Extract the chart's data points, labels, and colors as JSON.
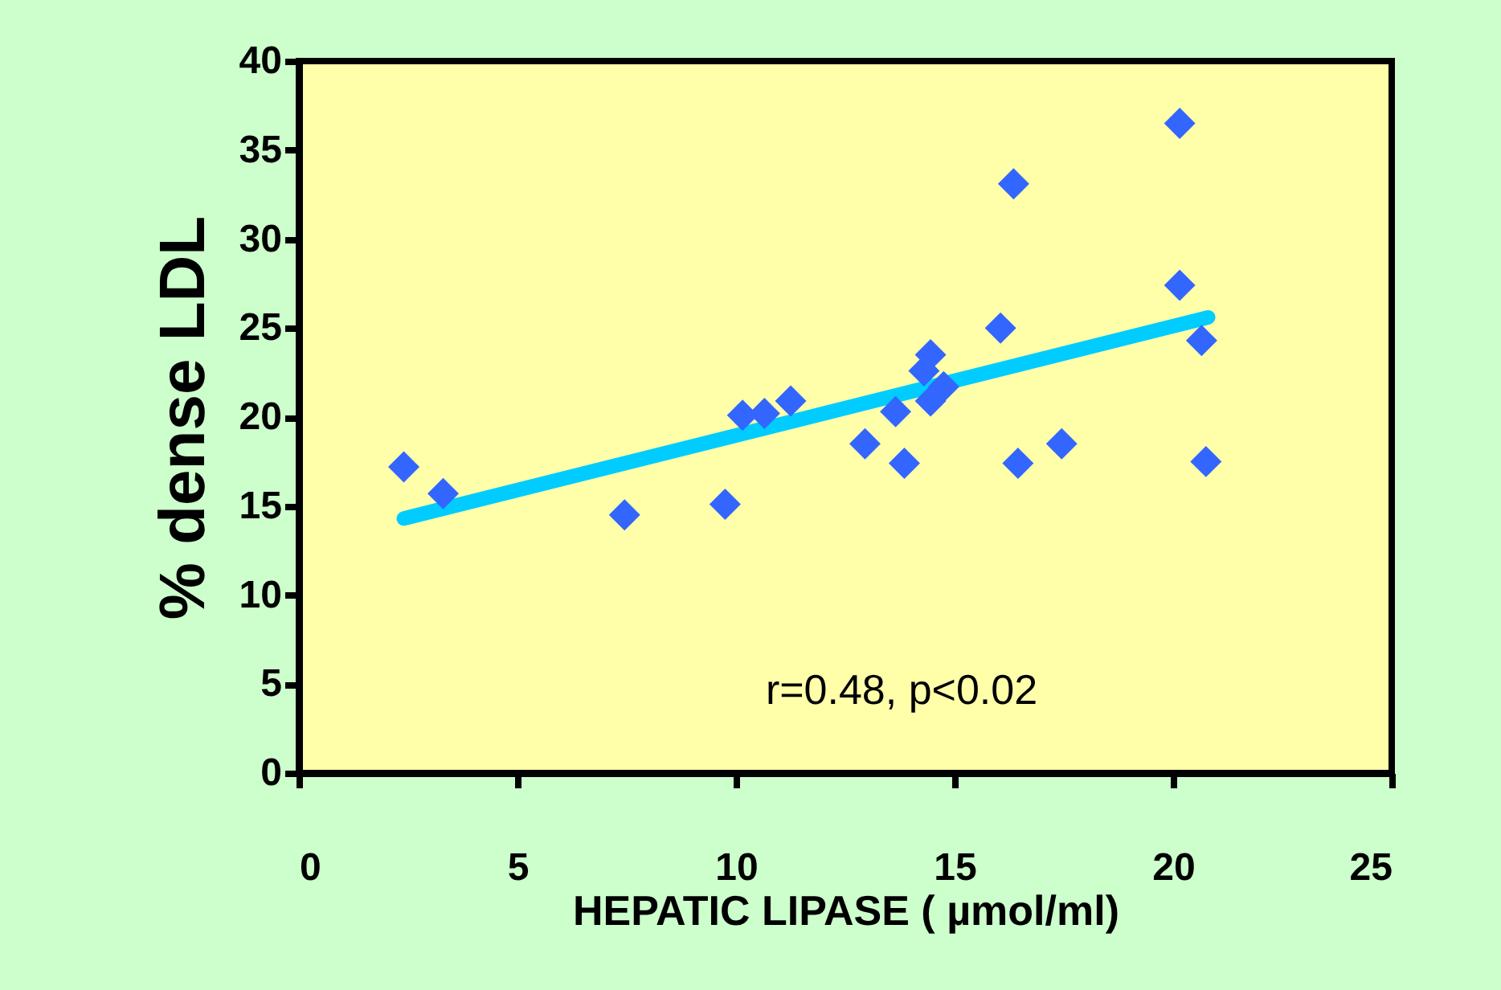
{
  "chart_data": {
    "type": "scatter",
    "xlabel": "HEPATIC LIPASE ( µmol/ml)",
    "ylabel": "% dense LDL",
    "xlim": [
      0,
      25
    ],
    "xticks": [
      0,
      5,
      10,
      15,
      20,
      25
    ],
    "ylim": [
      0,
      40
    ],
    "yticks": [
      0,
      5,
      10,
      15,
      20,
      25,
      30,
      35,
      40
    ],
    "grid": false,
    "legend": false,
    "series": [
      {
        "color": "#3366ff",
        "marker": "diamond",
        "x": [
          2.4,
          3.3,
          7.45,
          9.75,
          10.15,
          10.65,
          11.25,
          12.95,
          13.65,
          13.85,
          14.45,
          14.3,
          14.45,
          14.75,
          16.05,
          16.35,
          16.45,
          17.45,
          20.15,
          20.15,
          20.65,
          20.75
        ],
        "values": [
          17.2,
          15.7,
          14.5,
          15.1,
          20.1,
          20.2,
          20.9,
          18.5,
          20.3,
          17.4,
          23.5,
          22.6,
          20.9,
          21.7,
          25.0,
          33.1,
          17.4,
          18.5,
          36.5,
          27.4,
          24.3,
          17.5
        ]
      },
      {
        "type": "line",
        "marker": "none",
        "color": "#00ccff",
        "x": [
          2.4,
          20.8
        ],
        "values": [
          14.3,
          25.6
        ]
      }
    ],
    "annotations": [
      "r=0.48, p<0.02"
    ]
  }
}
